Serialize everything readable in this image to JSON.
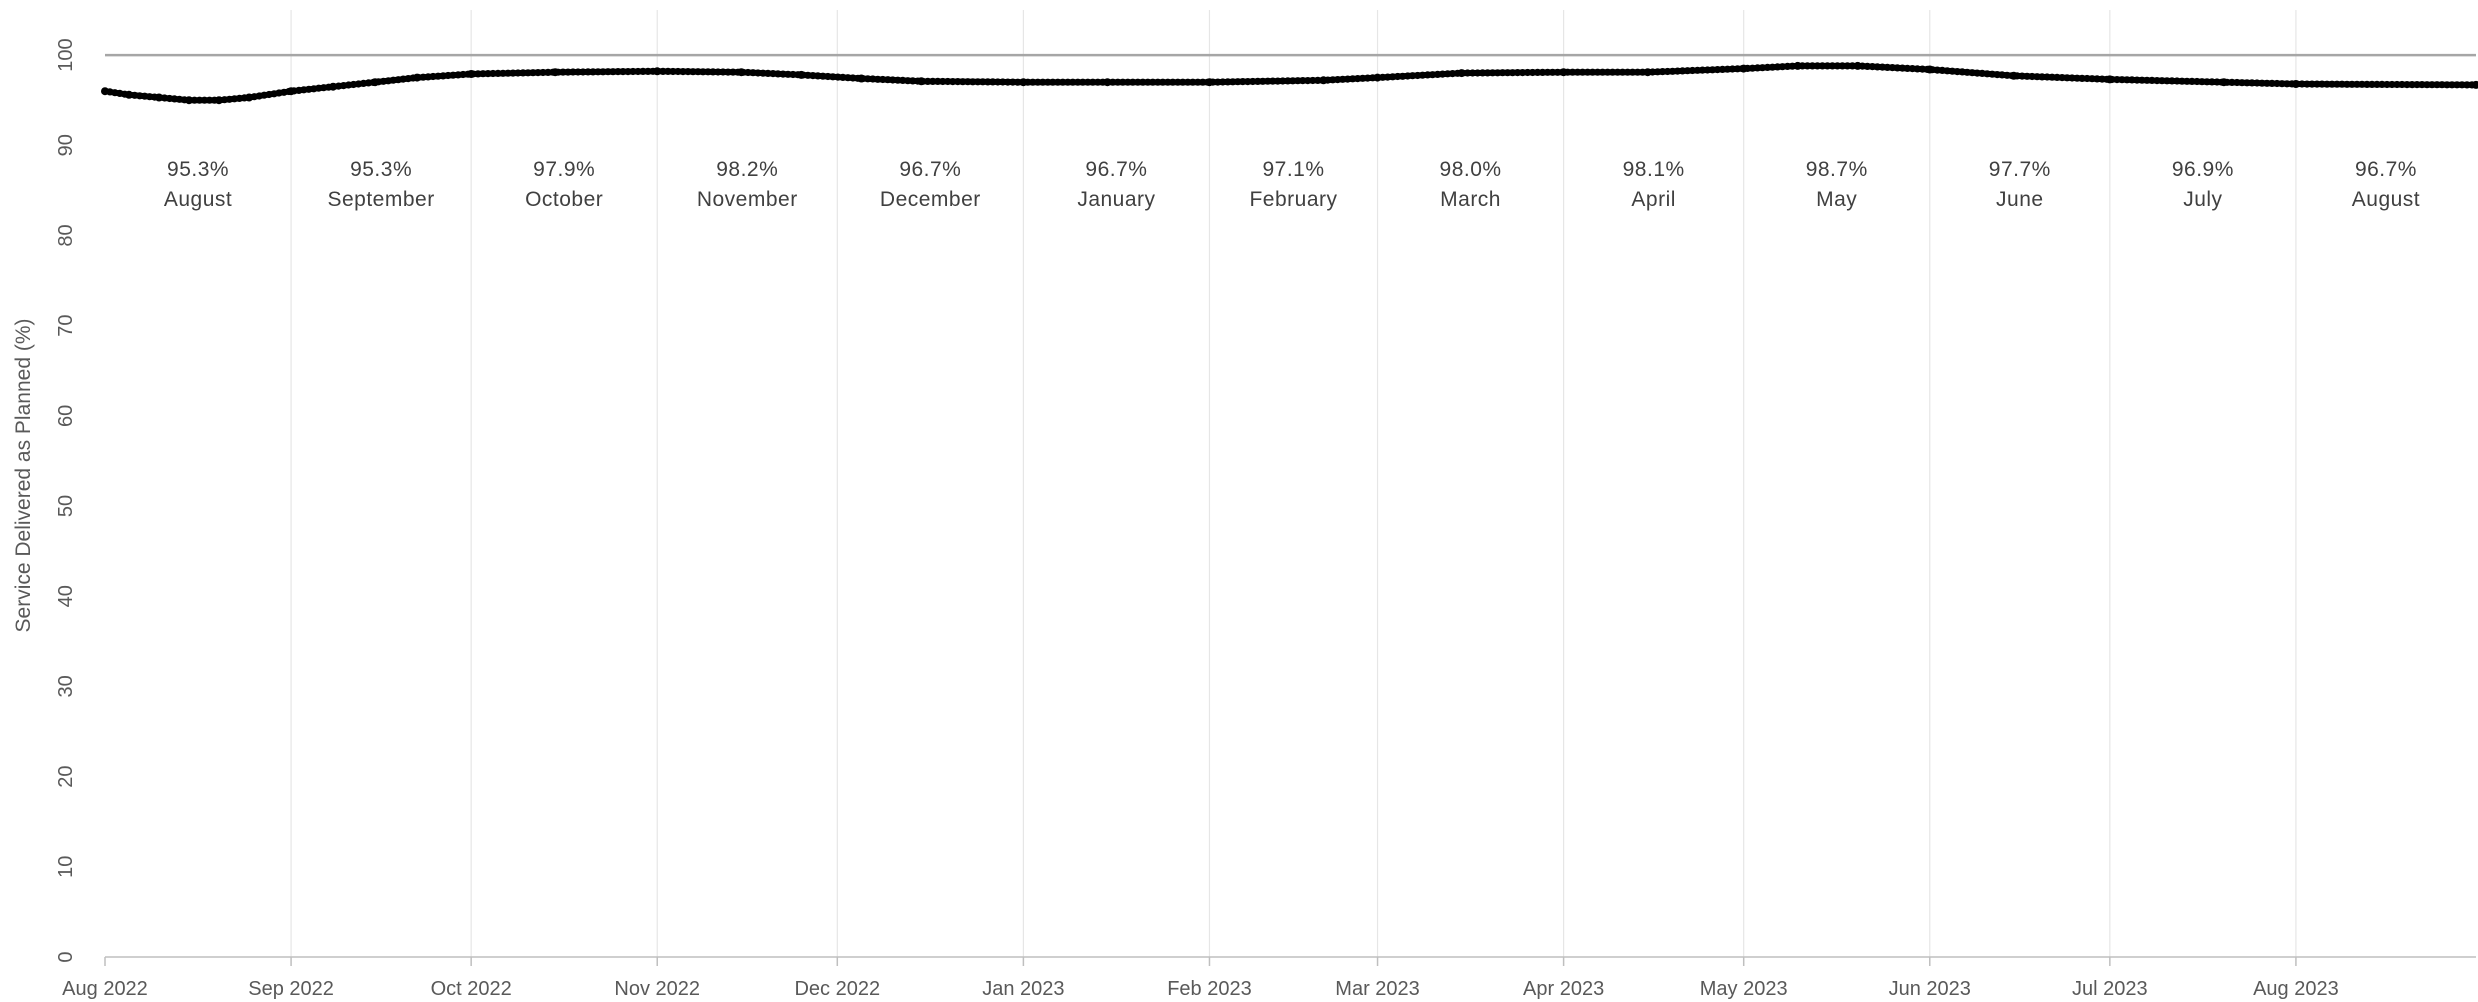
{
  "chart_data": {
    "type": "line",
    "title": "",
    "xlabel": "",
    "ylabel": "Service Delivered as Planned (%)",
    "ylim": [
      0,
      105
    ],
    "yticks": [
      "0",
      "10",
      "20",
      "30",
      "40",
      "50",
      "60",
      "70",
      "80",
      "90",
      "100"
    ],
    "target_line": 100,
    "grid": "vertical lines at month starts",
    "xlim": [
      "2022-08-01",
      "2023-08-31"
    ],
    "xticks": [
      {
        "date": "2022-08-01",
        "label": "Aug 2022"
      },
      {
        "date": "2022-09-01",
        "label": "Sep 2022"
      },
      {
        "date": "2022-10-01",
        "label": "Oct 2022"
      },
      {
        "date": "2022-11-01",
        "label": "Nov 2022"
      },
      {
        "date": "2022-12-01",
        "label": "Dec 2022"
      },
      {
        "date": "2023-01-01",
        "label": "Jan 2023"
      },
      {
        "date": "2023-02-01",
        "label": "Feb 2023"
      },
      {
        "date": "2023-03-01",
        "label": "Mar 2023"
      },
      {
        "date": "2023-04-01",
        "label": "Apr 2023"
      },
      {
        "date": "2023-05-01",
        "label": "May 2023"
      },
      {
        "date": "2023-06-01",
        "label": "Jun 2023"
      },
      {
        "date": "2023-07-01",
        "label": "Jul 2023"
      },
      {
        "date": "2023-08-01",
        "label": "Aug 2023"
      }
    ],
    "monthly_summary": [
      {
        "value": "95.3%",
        "month": "August"
      },
      {
        "value": "95.3%",
        "month": "September"
      },
      {
        "value": "97.9%",
        "month": "October"
      },
      {
        "value": "98.2%",
        "month": "November"
      },
      {
        "value": "96.7%",
        "month": "December"
      },
      {
        "value": "96.7%",
        "month": "January"
      },
      {
        "value": "97.1%",
        "month": "February"
      },
      {
        "value": "98.0%",
        "month": "March"
      },
      {
        "value": "98.1%",
        "month": "April"
      },
      {
        "value": "98.7%",
        "month": "May"
      },
      {
        "value": "97.7%",
        "month": "June"
      },
      {
        "value": "96.9%",
        "month": "July"
      },
      {
        "value": "96.7%",
        "month": "August"
      }
    ],
    "series": [
      {
        "color": "#000000",
        "points": [
          {
            "x": "2022-08-01",
            "y": 96.0
          },
          {
            "x": "2022-08-05",
            "y": 95.6
          },
          {
            "x": "2022-08-10",
            "y": 95.3
          },
          {
            "x": "2022-08-15",
            "y": 95.0
          },
          {
            "x": "2022-08-20",
            "y": 95.0
          },
          {
            "x": "2022-08-25",
            "y": 95.3
          },
          {
            "x": "2022-09-01",
            "y": 96.0
          },
          {
            "x": "2022-09-08",
            "y": 96.5
          },
          {
            "x": "2022-09-15",
            "y": 97.0
          },
          {
            "x": "2022-09-22",
            "y": 97.5
          },
          {
            "x": "2022-10-01",
            "y": 97.9
          },
          {
            "x": "2022-10-15",
            "y": 98.1
          },
          {
            "x": "2022-11-01",
            "y": 98.2
          },
          {
            "x": "2022-11-15",
            "y": 98.1
          },
          {
            "x": "2022-11-25",
            "y": 97.8
          },
          {
            "x": "2022-12-05",
            "y": 97.4
          },
          {
            "x": "2022-12-15",
            "y": 97.1
          },
          {
            "x": "2023-01-01",
            "y": 97.0
          },
          {
            "x": "2023-01-15",
            "y": 97.0
          },
          {
            "x": "2023-02-01",
            "y": 97.0
          },
          {
            "x": "2023-02-20",
            "y": 97.2
          },
          {
            "x": "2023-03-01",
            "y": 97.5
          },
          {
            "x": "2023-03-15",
            "y": 98.0
          },
          {
            "x": "2023-04-01",
            "y": 98.1
          },
          {
            "x": "2023-04-15",
            "y": 98.1
          },
          {
            "x": "2023-05-01",
            "y": 98.5
          },
          {
            "x": "2023-05-10",
            "y": 98.8
          },
          {
            "x": "2023-05-20",
            "y": 98.8
          },
          {
            "x": "2023-06-01",
            "y": 98.4
          },
          {
            "x": "2023-06-15",
            "y": 97.7
          },
          {
            "x": "2023-07-01",
            "y": 97.3
          },
          {
            "x": "2023-07-20",
            "y": 97.0
          },
          {
            "x": "2023-08-01",
            "y": 96.8
          },
          {
            "x": "2023-08-31",
            "y": 96.7
          }
        ]
      }
    ]
  }
}
